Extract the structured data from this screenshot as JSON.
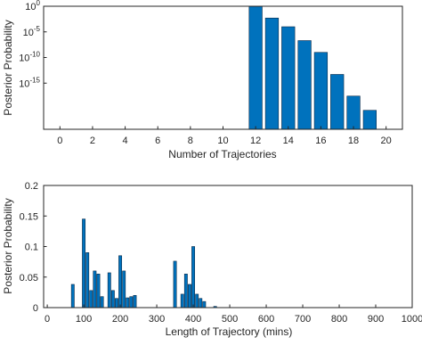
{
  "chart_data": [
    {
      "type": "bar",
      "title": "",
      "xlabel": "Number of Trajectories",
      "ylabel": "Posterior Probability",
      "yscale": "log",
      "xlim": [
        -1,
        21
      ],
      "ylim": [
        1e-24,
        1
      ],
      "xticks": [
        0,
        2,
        4,
        6,
        8,
        10,
        12,
        14,
        16,
        18,
        20
      ],
      "xtick_labels": [
        "0",
        "2",
        "4",
        "6",
        "8",
        "10",
        "12",
        "14",
        "16",
        "18",
        "20"
      ],
      "yticks": [
        1,
        1e-05,
        1e-10,
        1e-15
      ],
      "ytick_labels": [
        {
          "base": "10",
          "exp": "0"
        },
        {
          "base": "10",
          "exp": "-5"
        },
        {
          "base": "10",
          "exp": "-10"
        },
        {
          "base": "10",
          "exp": "-15"
        }
      ],
      "bar_color": "#0072bd",
      "grid": false,
      "box": true,
      "categories": [
        12,
        13,
        14,
        15,
        16,
        17,
        18,
        19
      ],
      "values": [
        0.9,
        0.005,
        0.0001,
        2e-07,
        1e-09,
        5e-14,
        3e-18,
        5e-21
      ]
    },
    {
      "type": "bar",
      "title": "",
      "xlabel": "Length of Trajectory (mins)",
      "ylabel": "Posterior Probability",
      "xlim": [
        -10,
        1000
      ],
      "ylim": [
        0,
        0.2
      ],
      "bin_width": 10,
      "xticks": [
        0,
        100,
        200,
        300,
        400,
        500,
        600,
        700,
        800,
        900,
        1000
      ],
      "xtick_labels": [
        "0",
        "100",
        "200",
        "300",
        "400",
        "500",
        "600",
        "700",
        "800",
        "900",
        "1000"
      ],
      "yticks": [
        0,
        0.05,
        0.1,
        0.15,
        0.2
      ],
      "ytick_labels": [
        "0",
        "0.05",
        "0.1",
        "0.15",
        "0.2"
      ],
      "bar_color": "#0072bd",
      "grid": false,
      "box": true,
      "x": [
        70,
        100,
        110,
        120,
        130,
        140,
        150,
        170,
        180,
        190,
        200,
        210,
        220,
        230,
        240,
        350,
        370,
        380,
        390,
        400,
        410,
        420,
        430,
        460
      ],
      "values": [
        0.038,
        0.145,
        0.09,
        0.028,
        0.06,
        0.055,
        0.018,
        0.057,
        0.028,
        0.015,
        0.085,
        0.06,
        0.016,
        0.018,
        0.02,
        0.076,
        0.022,
        0.055,
        0.038,
        0.1,
        0.022,
        0.015,
        0.01,
        0.002
      ]
    }
  ]
}
